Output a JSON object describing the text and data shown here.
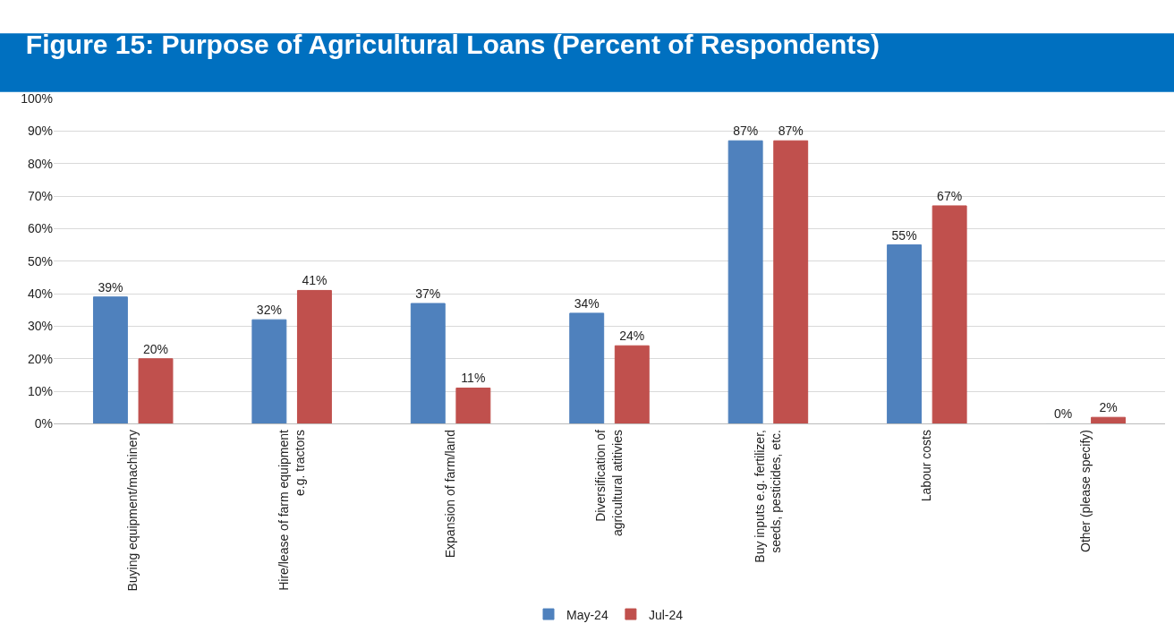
{
  "chart_data": {
    "type": "bar",
    "title": "Figure 15: Purpose of Agricultural Loans (Percent of Respondents)",
    "categories": [
      "Buying equipment/machinery",
      "Hire/lease of farm equipment e.g. tractors",
      "Expansion of farm/land",
      "Diversification of agricultural atitivies",
      "Buy inputs e.g. fertilizer, seeds, pesticides, etc.",
      "Labour costs",
      "Other (please specify)"
    ],
    "series": [
      {
        "name": "May-24",
        "color": "#4f81bd",
        "values": [
          39,
          32,
          37,
          34,
          87,
          55,
          0
        ],
        "value_labels": [
          "39%",
          "32%",
          "37%",
          "34%",
          "87%",
          "55%",
          "0%"
        ]
      },
      {
        "name": "Jul-24",
        "color": "#c0504d",
        "values": [
          20,
          41,
          11,
          24,
          87,
          67,
          2
        ],
        "value_labels": [
          "20%",
          "41%",
          "11%",
          "24%",
          "87%",
          "67%",
          "2%"
        ]
      }
    ],
    "ylim": [
      0,
      100
    ],
    "yticks": [
      {
        "value": 0,
        "label": "0%"
      },
      {
        "value": 10,
        "label": "10%"
      },
      {
        "value": 20,
        "label": "20%"
      },
      {
        "value": 30,
        "label": "30%"
      },
      {
        "value": 40,
        "label": "40%"
      },
      {
        "value": 50,
        "label": "50%"
      },
      {
        "value": 60,
        "label": "60%"
      },
      {
        "value": 70,
        "label": "70%"
      },
      {
        "value": 80,
        "label": "80%"
      },
      {
        "value": 90,
        "label": "90%"
      },
      {
        "value": 100,
        "label": "100%"
      }
    ],
    "grid": "y",
    "legend": "bottom"
  }
}
